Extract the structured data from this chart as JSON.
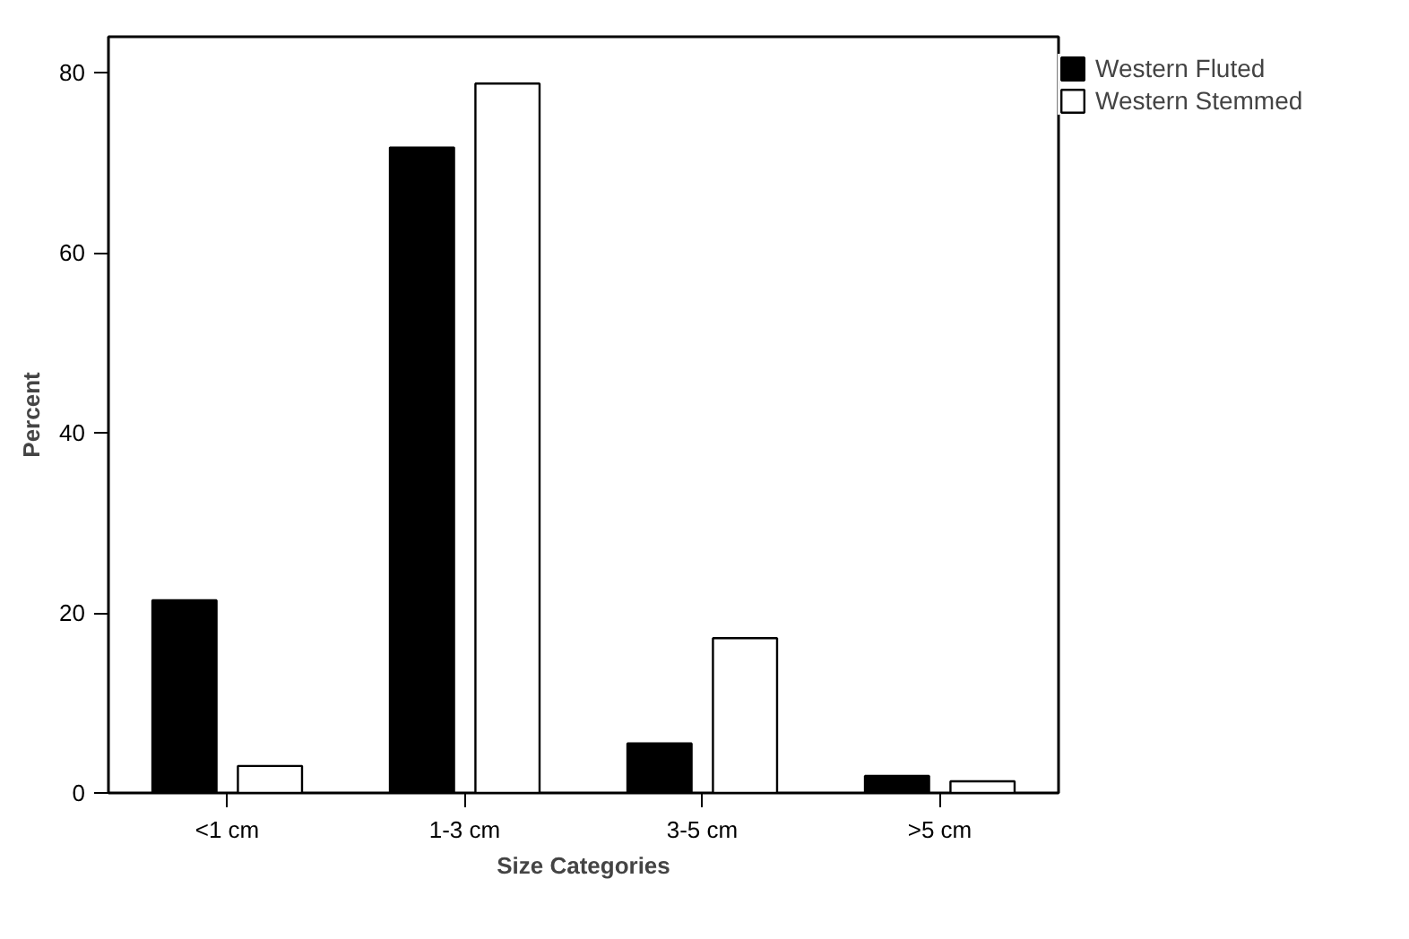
{
  "chart_data": {
    "type": "bar",
    "xlabel": "Size Categories",
    "ylabel": "Percent",
    "categories": [
      "<1 cm",
      "1-3 cm",
      "3-5 cm",
      ">5 cm"
    ],
    "series": [
      {
        "name": "Western Fluted",
        "color": "#000000",
        "values": [
          21.4,
          71.7,
          5.5,
          1.9
        ]
      },
      {
        "name": "Western Stemmed",
        "color": "#ffffff",
        "values": [
          3.0,
          78.8,
          17.2,
          1.3
        ]
      }
    ],
    "ylim": [
      0,
      84
    ],
    "yticks": [
      0,
      20,
      40,
      60,
      80
    ],
    "grid": false,
    "legend": "top right"
  }
}
